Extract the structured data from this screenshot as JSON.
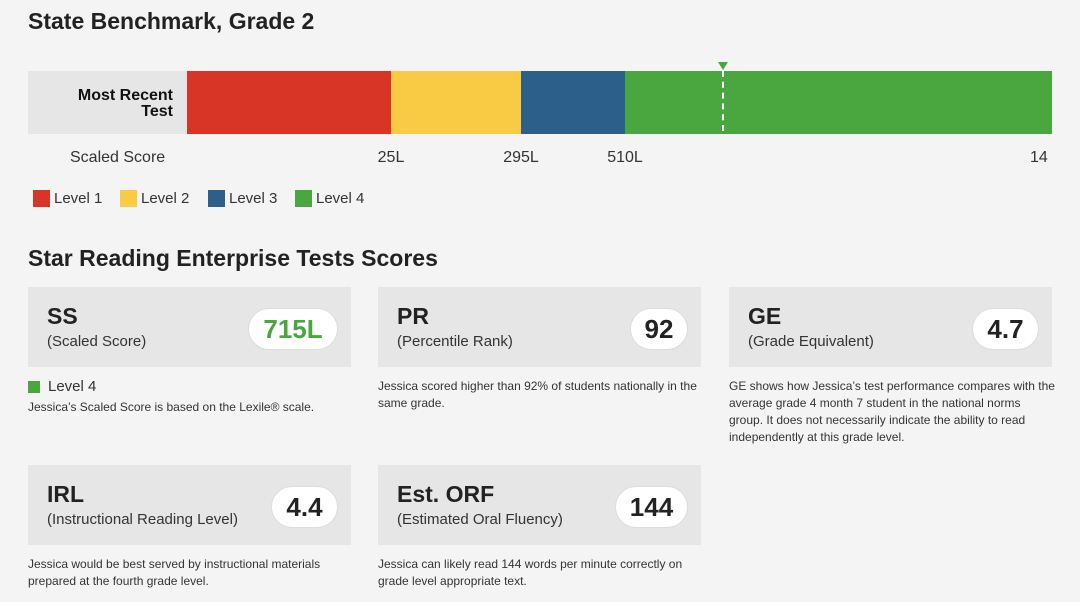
{
  "page": {
    "title": "State Benchmark, Grade 2"
  },
  "benchmark": {
    "row_label": "Most Recent Test",
    "axis_label": "Scaled Score",
    "levels": [
      {
        "name": "Level 1",
        "color": "#d93526"
      },
      {
        "name": "Level 2",
        "color": "#f9ca43"
      },
      {
        "name": "Level 3",
        "color": "#2c5f8a"
      },
      {
        "name": "Level 4",
        "color": "#4aa63f"
      }
    ],
    "cut_scores": [
      "25L",
      "295L",
      "510L",
      "14"
    ],
    "student_score": "715L"
  },
  "scores_section": {
    "title": "Star Reading Enterprise Tests Scores"
  },
  "cards": {
    "ss": {
      "abbr": "SS",
      "full": "(Scaled Score)",
      "value": "715L",
      "value_color": "#4aa63f"
    },
    "pr": {
      "abbr": "PR",
      "full": "(Percentile Rank)",
      "value": "92"
    },
    "ge": {
      "abbr": "GE",
      "full": "(Grade Equivalent)",
      "value": "4.7"
    },
    "irl": {
      "abbr": "IRL",
      "full": "(Instructional Reading Level)",
      "value": "4.4"
    },
    "orf": {
      "abbr": "Est. ORF",
      "full": "(Estimated Oral Fluency)",
      "value": "144"
    }
  },
  "descriptions": {
    "ss_level": "Level 4",
    "ss": "Jessica’s Scaled Score is based on the Lexile® scale.",
    "pr_line1": "Jessica scored higher than 92% of students nationally in the",
    "pr_line2": "same grade.",
    "ge_line1": "GE shows how Jessica’s test performance compares with the",
    "ge_line2": "average grade 4 month 7 student in the national norms",
    "ge_line3": "group. It does not necessarily indicate the ability to read",
    "ge_line4": "independently at this grade level.",
    "irl_line1": "Jessica would be best served by instructional materials",
    "irl_line2": "prepared at the fourth grade level.",
    "orf_line1": "Jessica can likely read 144 words per minute correctly on",
    "orf_line2": "grade level appropriate text."
  }
}
